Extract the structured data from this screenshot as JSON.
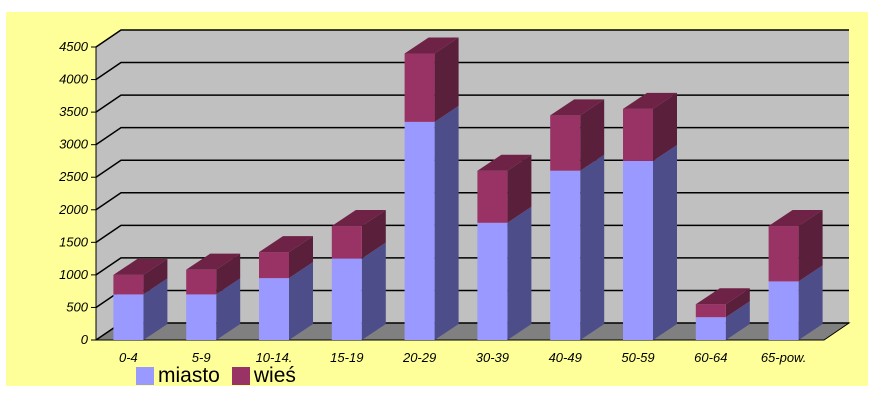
{
  "chart_data": {
    "type": "bar",
    "stacked": true,
    "three_d": true,
    "categories": [
      "0-4",
      "5-9",
      "10-14.",
      "15-19",
      "20-29",
      "30-39",
      "40-49",
      "50-59",
      "60-64",
      "65-pow."
    ],
    "series": [
      {
        "name": "miasto",
        "color": "#9999ff",
        "values": [
          700,
          700,
          950,
          1250,
          3350,
          1800,
          2600,
          2750,
          350,
          900
        ]
      },
      {
        "name": "wieś",
        "color": "#993366",
        "values": [
          300,
          380,
          400,
          500,
          1050,
          800,
          850,
          800,
          200,
          850
        ]
      }
    ],
    "ylim": [
      0,
      4500
    ],
    "yticks": [
      0,
      500,
      1000,
      1500,
      2000,
      2500,
      3000,
      3500,
      4000,
      4500
    ],
    "grid": true,
    "legend_position": "bottom-left",
    "colors": {
      "background": "#ffff99",
      "wall": "#c0c0c0",
      "floor": "#808080",
      "miasto_side": "#4d4d8a",
      "wies_side": "#5a1f3b",
      "wies_top": "#6e2346"
    }
  }
}
